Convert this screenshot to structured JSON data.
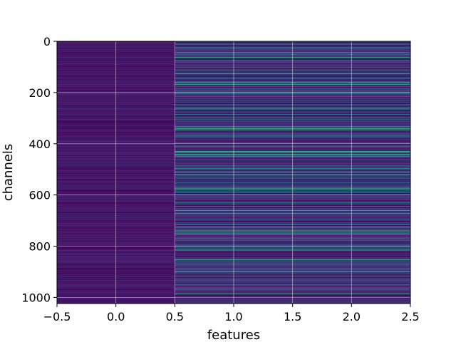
{
  "chart_data": {
    "type": "heatmap",
    "colormap": "viridis",
    "xlabel": "features",
    "ylabel": "channels",
    "xlim": [
      -0.5,
      2.5
    ],
    "ylim": [
      1024,
      0
    ],
    "columns": [
      0,
      1,
      2
    ],
    "rows": 1024,
    "grid": true,
    "x_ticks": [
      -0.5,
      0.0,
      0.5,
      1.0,
      1.5,
      2.0,
      2.5
    ],
    "x_tick_labels": [
      "−0.5",
      "0.0",
      "0.5",
      "1.0",
      "1.5",
      "2.0",
      "2.5"
    ],
    "y_ticks": [
      0,
      200,
      400,
      600,
      800,
      1000
    ],
    "y_tick_labels": [
      "0",
      "200",
      "400",
      "600",
      "800",
      "1000"
    ],
    "column0_value_range": [
      0.0,
      0.15
    ],
    "columns_1_2_value_range": [
      0.0,
      0.85
    ],
    "bright_rows_columns_1_2": [
      62,
      75,
      125,
      160,
      168,
      340,
      345,
      430,
      432,
      440,
      448,
      510,
      520,
      573,
      580,
      660,
      672,
      740,
      748,
      815,
      852,
      900,
      985
    ]
  }
}
